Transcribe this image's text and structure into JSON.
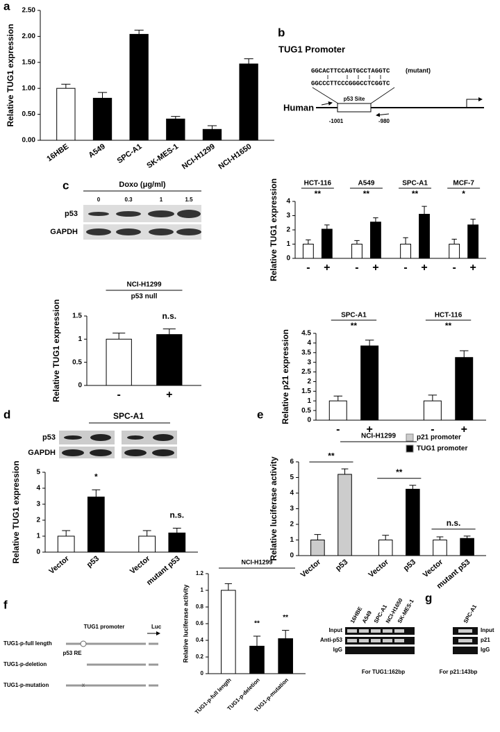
{
  "chart_data": [
    {
      "type": "bar",
      "ylabel": "Relative TUG1 expression",
      "categories": [
        "16HBE",
        "A549",
        "SPC-A1",
        "SK-MES-1",
        "NCI-H1299",
        "NCI-H1650"
      ],
      "values": [
        1.0,
        0.81,
        2.04,
        0.41,
        0.21,
        1.47
      ],
      "errors": [
        0.08,
        0.11,
        0.08,
        0.05,
        0.07,
        0.1
      ],
      "colors": [
        "#ffffff",
        "#000000",
        "#000000",
        "#000000",
        "#000000",
        "#000000"
      ],
      "ylim": [
        0,
        2.5
      ],
      "yticks": [
        {
          "value": 0,
          "label": "0.00"
        },
        {
          "value": 0.5,
          "label": "0.50"
        },
        {
          "value": 1,
          "label": "1.00"
        },
        {
          "value": 1.5,
          "label": "1.50"
        },
        {
          "value": 2,
          "label": "2.00"
        },
        {
          "value": 2.5,
          "label": "2.50"
        }
      ]
    },
    {
      "type": "bar",
      "ylabel": "Relative TUG1 expression",
      "group_labels": [
        "HCT-116",
        "A549",
        "SPC-A1",
        "MCF-7"
      ],
      "annotations": [
        "**",
        "**",
        "**",
        "*"
      ],
      "categories": [
        "-",
        "+",
        "-",
        "+",
        "-",
        "+",
        "-",
        "+"
      ],
      "values": [
        1,
        2.05,
        1,
        2.55,
        1,
        3.1,
        1,
        2.35
      ],
      "errors": [
        0.3,
        0.3,
        0.25,
        0.3,
        0.45,
        0.55,
        0.35,
        0.4
      ],
      "colors": [
        "#ffffff",
        "#000000",
        "#ffffff",
        "#000000",
        "#ffffff",
        "#000000",
        "#ffffff",
        "#000000"
      ],
      "ylim": [
        0,
        4
      ],
      "yticks": [
        0,
        1,
        2,
        3,
        4
      ]
    },
    {
      "type": "bar",
      "title": "NCI-H1299",
      "subtitle": "p53 null",
      "ylabel": "Relative TUG1 expression",
      "annotations": [
        "n.s."
      ],
      "categories": [
        "-",
        "+"
      ],
      "values": [
        1,
        1.1
      ],
      "errors": [
        0.13,
        0.12
      ],
      "colors": [
        "#ffffff",
        "#000000"
      ],
      "ylim": [
        0,
        1.5
      ],
      "yticks": [
        0,
        0.5,
        1,
        1.5
      ]
    },
    {
      "type": "bar",
      "ylabel": "Relative p21 expression",
      "group_labels": [
        "SPC-A1",
        "HCT-116"
      ],
      "annotations": [
        "**",
        "**"
      ],
      "categories": [
        "-",
        "+",
        "-",
        "+"
      ],
      "values": [
        1,
        3.85,
        1,
        3.25
      ],
      "errors": [
        0.25,
        0.3,
        0.3,
        0.35
      ],
      "colors": [
        "#ffffff",
        "#000000",
        "#ffffff",
        "#000000"
      ],
      "ylim": [
        0,
        4.5
      ],
      "yticks": [
        0,
        0.5,
        1,
        1.5,
        2,
        2.5,
        3,
        3.5,
        4,
        4.5
      ]
    },
    {
      "type": "bar",
      "ylabel": "Relative TUG1 expression",
      "annotations": [
        "*",
        "n.s."
      ],
      "categories": [
        "Vector",
        "p53",
        "Vector",
        "mutant p53"
      ],
      "values": [
        1,
        3.45,
        1,
        1.2
      ],
      "errors": [
        0.35,
        0.45,
        0.35,
        0.3
      ],
      "colors": [
        "#ffffff",
        "#000000",
        "#ffffff",
        "#000000"
      ],
      "ylim": [
        0,
        5
      ],
      "yticks": [
        0,
        1,
        2,
        3,
        4,
        5
      ]
    },
    {
      "type": "bar",
      "title": "NCI-H1299",
      "ylabel": "Relative  luciferase activity",
      "annotations": [
        "**",
        "**",
        "n.s."
      ],
      "legend": [
        {
          "name": "p21 promoter",
          "color": "#cccccc"
        },
        {
          "name": "TUG1 promoter",
          "color": "#000000"
        }
      ],
      "categories": [
        "Vector",
        "p53",
        "Vector",
        "p53",
        "Vector",
        "mutant p53"
      ],
      "values": [
        1,
        5.2,
        1,
        4.25,
        1,
        1.1
      ],
      "errors": [
        0.35,
        0.35,
        0.3,
        0.25,
        0.2,
        0.15
      ],
      "colors": [
        "#cccccc",
        "#cccccc",
        "#ffffff",
        "#000000",
        "#ffffff",
        "#000000"
      ],
      "ylim": [
        0,
        6
      ],
      "yticks": [
        0,
        1,
        2,
        3,
        4,
        5,
        6
      ]
    },
    {
      "type": "bar",
      "title": "NCI-H1299",
      "ylabel": "Relative  luciferase activity",
      "annotations": [
        "**",
        "**"
      ],
      "categories": [
        "TUG1-p-full length",
        "TUG1-p-deletion",
        "TUG1-p-mutation"
      ],
      "values": [
        1.0,
        0.33,
        0.42
      ],
      "errors": [
        0.08,
        0.12,
        0.1
      ],
      "colors": [
        "#ffffff",
        "#000000",
        "#000000"
      ],
      "ylim": [
        0,
        1.2
      ],
      "yticks": [
        0,
        0.2,
        0.4,
        0.6,
        0.8,
        1,
        1.2
      ]
    }
  ],
  "panel_labels": [
    "a",
    "b",
    "c",
    "d",
    "e",
    "f",
    "g"
  ],
  "panel_b": {
    "title": "TUG1 Promoter",
    "mutant_seq": "GGCACTTCCAGTGCCTAGGTC",
    "mutant_label": "(mutant)",
    "wild_seq": "GGCCCTTCCCGGGCCTCGGTC",
    "site": "p53 Site",
    "species": "Human",
    "start": "-1001",
    "end": "-980"
  },
  "panel_c_blot": {
    "treatment": "Doxo (μg/ml)",
    "doses": [
      "0",
      "0.3",
      "1",
      "1.5"
    ],
    "rows": [
      "p53",
      "GAPDH"
    ]
  },
  "panel_d_blot": {
    "cell_line": "SPC-A1",
    "rows": [
      "p53",
      "GAPDH"
    ]
  },
  "panel_f_diagram": {
    "title": "TUG1 promoter",
    "reporter": "Luc",
    "constructs": [
      "TUG1-p-full length",
      "TUG1-p-deletion",
      "TUG1-p-mutation"
    ],
    "site": "p53 RE"
  },
  "panel_g": {
    "lanes": [
      "16HBE",
      "A549",
      "SPC-A1",
      "NCI-H1650",
      "SK-MES-1",
      "SPC-A1"
    ],
    "rows_left": [
      "Input",
      "Anti-p53",
      "IgG"
    ],
    "rows_right": [
      "Input",
      "p21",
      "IgG"
    ],
    "footers": [
      "For TUG1:162bp",
      "For p21:143bp"
    ]
  }
}
